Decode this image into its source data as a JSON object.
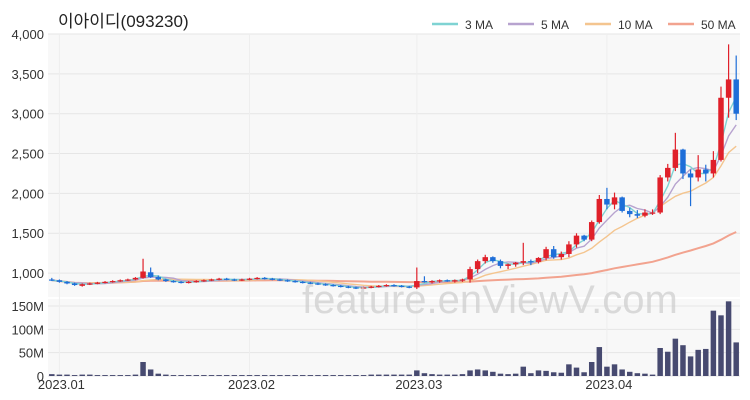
{
  "chart_data": {
    "type": "candlestick",
    "title": "이아이디(093230)",
    "watermark": "feature.enViewV.com",
    "legend": [
      {
        "name": "3 MA",
        "color": "#7fd3d3"
      },
      {
        "name": "5 MA",
        "color": "#b7a3cf"
      },
      {
        "name": "10 MA",
        "color": "#f4c58f"
      },
      {
        "name": "50 MA",
        "color": "#f2a38f"
      }
    ],
    "price_axis": {
      "ticks": [
        "1,000",
        "1,500",
        "2,000",
        "2,500",
        "3,000",
        "3,500",
        "4,000"
      ],
      "ylim": [
        700,
        4000
      ]
    },
    "volume_axis": {
      "ticks": [
        "0",
        "50M",
        "100M",
        "150M"
      ],
      "ylim": [
        0,
        165
      ]
    },
    "x_ticks": [
      {
        "label": "2023.01",
        "index": 1
      },
      {
        "label": "2023.02",
        "index": 26
      },
      {
        "label": "2023.03",
        "index": 48
      },
      {
        "label": "2023.04",
        "index": 73
      }
    ],
    "up_color": "#e0202a",
    "down_color": "#1e6ed8",
    "volume_color": "#474a70",
    "candles": [
      [
        920,
        940,
        900,
        910,
        4
      ],
      [
        910,
        920,
        880,
        890,
        3
      ],
      [
        890,
        900,
        860,
        870,
        3
      ],
      [
        870,
        880,
        840,
        850,
        2
      ],
      [
        840,
        870,
        830,
        860,
        3
      ],
      [
        860,
        880,
        850,
        870,
        3
      ],
      [
        870,
        890,
        860,
        880,
        2
      ],
      [
        880,
        900,
        870,
        890,
        2
      ],
      [
        890,
        910,
        880,
        900,
        2
      ],
      [
        900,
        920,
        890,
        910,
        2
      ],
      [
        910,
        930,
        900,
        920,
        2
      ],
      [
        920,
        950,
        910,
        940,
        3
      ],
      [
        940,
        1180,
        930,
        1020,
        30
      ],
      [
        1010,
        1070,
        940,
        950,
        14
      ],
      [
        950,
        970,
        910,
        920,
        5
      ],
      [
        920,
        930,
        890,
        900,
        3
      ],
      [
        900,
        910,
        880,
        890,
        2
      ],
      [
        890,
        900,
        870,
        880,
        2
      ],
      [
        880,
        900,
        870,
        890,
        2
      ],
      [
        890,
        910,
        880,
        900,
        2
      ],
      [
        900,
        920,
        890,
        910,
        2
      ],
      [
        910,
        930,
        900,
        920,
        2
      ],
      [
        920,
        940,
        910,
        930,
        2
      ],
      [
        930,
        940,
        910,
        920,
        2
      ],
      [
        920,
        930,
        900,
        910,
        2
      ],
      [
        910,
        930,
        900,
        920,
        2
      ],
      [
        920,
        940,
        910,
        930,
        2
      ],
      [
        930,
        950,
        920,
        940,
        2
      ],
      [
        940,
        950,
        920,
        930,
        2
      ],
      [
        930,
        940,
        910,
        920,
        2
      ],
      [
        920,
        930,
        900,
        910,
        2
      ],
      [
        910,
        920,
        890,
        900,
        2
      ],
      [
        900,
        910,
        880,
        890,
        2
      ],
      [
        890,
        900,
        870,
        880,
        2
      ],
      [
        880,
        890,
        860,
        870,
        2
      ],
      [
        870,
        880,
        850,
        860,
        2
      ],
      [
        860,
        870,
        840,
        850,
        2
      ],
      [
        850,
        860,
        830,
        840,
        2
      ],
      [
        840,
        850,
        820,
        830,
        2
      ],
      [
        830,
        840,
        810,
        820,
        2
      ],
      [
        820,
        830,
        800,
        810,
        2
      ],
      [
        810,
        830,
        800,
        820,
        2
      ],
      [
        820,
        840,
        810,
        830,
        3
      ],
      [
        830,
        850,
        820,
        840,
        3
      ],
      [
        840,
        860,
        830,
        850,
        3
      ],
      [
        850,
        860,
        830,
        840,
        3
      ],
      [
        840,
        850,
        820,
        830,
        3
      ],
      [
        830,
        840,
        810,
        820,
        3
      ],
      [
        820,
        1070,
        800,
        900,
        12
      ],
      [
        900,
        960,
        880,
        890,
        6
      ],
      [
        890,
        910,
        870,
        900,
        4
      ],
      [
        900,
        920,
        880,
        910,
        3
      ],
      [
        910,
        920,
        890,
        900,
        3
      ],
      [
        900,
        920,
        880,
        910,
        3
      ],
      [
        910,
        930,
        890,
        920,
        4
      ],
      [
        920,
        1080,
        880,
        1050,
        12
      ],
      [
        1050,
        1170,
        1000,
        1150,
        14
      ],
      [
        1150,
        1230,
        1120,
        1200,
        12
      ],
      [
        1200,
        1210,
        1130,
        1150,
        9
      ],
      [
        1150,
        1170,
        1060,
        1090,
        5
      ],
      [
        1090,
        1120,
        1050,
        1110,
        4
      ],
      [
        1110,
        1140,
        1080,
        1130,
        5
      ],
      [
        1130,
        1380,
        1100,
        1150,
        20
      ],
      [
        1150,
        1170,
        1100,
        1140,
        6
      ],
      [
        1140,
        1200,
        1120,
        1190,
        12
      ],
      [
        1190,
        1330,
        1160,
        1300,
        11
      ],
      [
        1300,
        1340,
        1180,
        1200,
        8
      ],
      [
        1200,
        1270,
        1170,
        1240,
        7
      ],
      [
        1240,
        1400,
        1200,
        1360,
        25
      ],
      [
        1360,
        1500,
        1320,
        1470,
        18
      ],
      [
        1470,
        1480,
        1400,
        1420,
        8
      ],
      [
        1420,
        1660,
        1400,
        1640,
        30
      ],
      [
        1640,
        1980,
        1620,
        1930,
        62
      ],
      [
        1930,
        2070,
        1800,
        1860,
        20
      ],
      [
        1860,
        2010,
        1800,
        1950,
        25
      ],
      [
        1950,
        1960,
        1760,
        1780,
        14
      ],
      [
        1780,
        1820,
        1700,
        1740,
        9
      ],
      [
        1740,
        1790,
        1690,
        1720,
        6
      ],
      [
        1720,
        1800,
        1700,
        1760,
        5
      ],
      [
        1760,
        1800,
        1730,
        1760,
        3
      ],
      [
        1760,
        2230,
        1740,
        2200,
        60
      ],
      [
        2200,
        2370,
        2150,
        2320,
        52
      ],
      [
        2320,
        2760,
        2280,
        2550,
        80
      ],
      [
        2550,
        2560,
        2180,
        2250,
        66
      ],
      [
        2250,
        2300,
        1840,
        2200,
        42
      ],
      [
        2200,
        2480,
        2150,
        2300,
        56
      ],
      [
        2300,
        2360,
        2150,
        2250,
        58
      ],
      [
        2250,
        2530,
        2200,
        2420,
        140
      ],
      [
        2420,
        3340,
        2400,
        3200,
        130
      ],
      [
        3200,
        3870,
        2950,
        3430,
        160
      ],
      [
        3430,
        3730,
        2920,
        3000,
        72
      ]
    ]
  }
}
